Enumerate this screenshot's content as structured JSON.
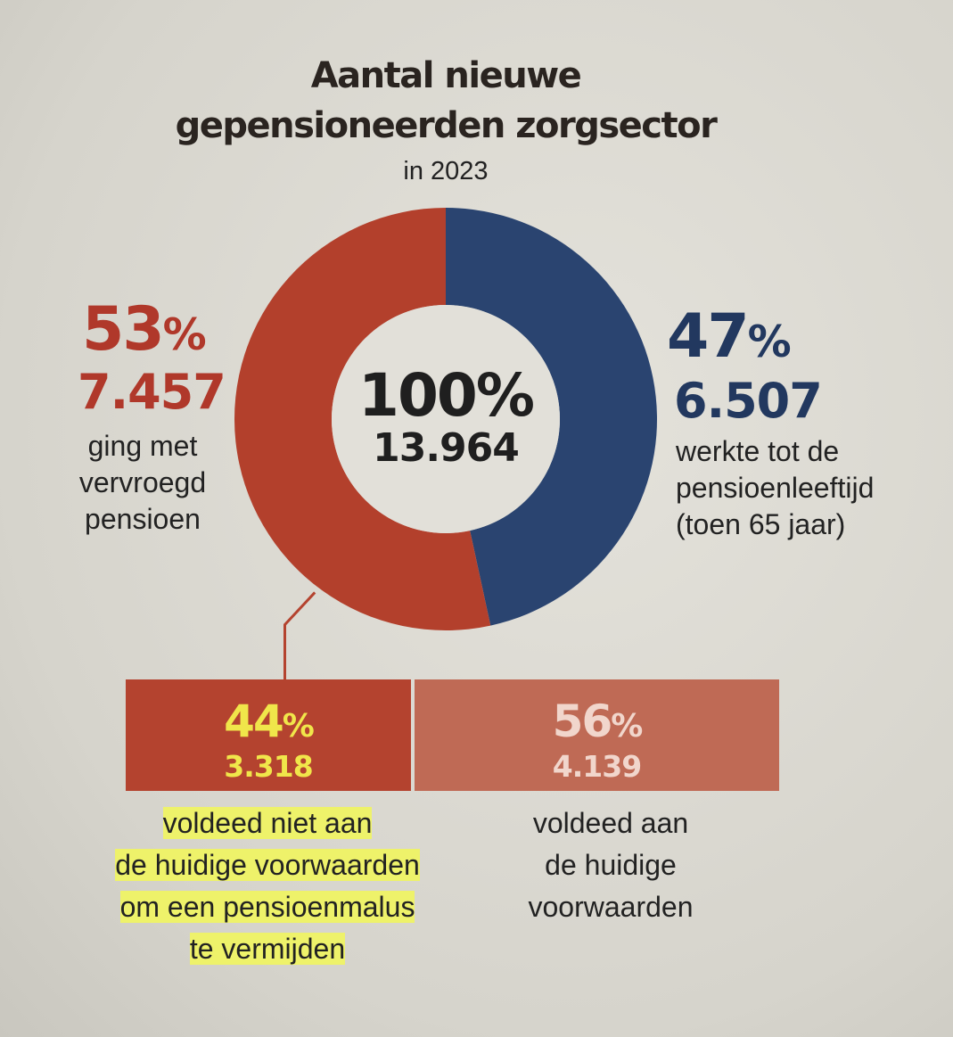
{
  "chart_data": {
    "type": "pie",
    "title_line1": "Aantal nieuwe",
    "title_line2": "gepensioneerden zorgsector",
    "subtitle": "in 2023",
    "total": {
      "percent": "100%",
      "count": "13.964"
    },
    "slices": [
      {
        "percent_num": "53",
        "percent_sign": "%",
        "value": 7457,
        "count": "7.457",
        "label": [
          "ging met",
          "vervroegd",
          "pensioen"
        ],
        "color": "#b3402c"
      },
      {
        "percent_num": "47",
        "percent_sign": "%",
        "value": 6507,
        "count": "6.507",
        "label": [
          "werkte tot de",
          "pensioenleeftijd",
          "(toen 65 jaar)"
        ],
        "color": "#2a4470"
      }
    ],
    "breakdown": [
      {
        "percent_num": "44",
        "percent_sign": "%",
        "value": 3318,
        "count": "3.318",
        "label": [
          "voldeed niet aan",
          "de huidige voorwaarden",
          "om een pensioenmalus",
          "te vermijden"
        ],
        "color": "#b4432f"
      },
      {
        "percent_num": "56",
        "percent_sign": "%",
        "value": 4139,
        "count": "4.139",
        "label": [
          "voldeed aan",
          "de huidige",
          "voorwaarden"
        ],
        "color": "#bf6a55"
      }
    ]
  }
}
